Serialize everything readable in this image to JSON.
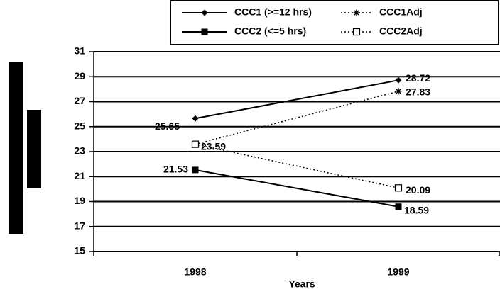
{
  "chart_data": {
    "type": "line",
    "categories": [
      "1998",
      "1999"
    ],
    "x_label": "Years",
    "ylim": [
      15,
      31
    ],
    "yticks": [
      15,
      17,
      19,
      21,
      23,
      25,
      27,
      29,
      31
    ],
    "grid": true,
    "series": [
      {
        "name": "CCC1 (>=12 hrs)",
        "color": "#000000",
        "marker": "diamond",
        "dash": false,
        "values": [
          25.65,
          28.72
        ]
      },
      {
        "name": "CCC1Adj",
        "color": "#000000",
        "marker": "asterisk",
        "dash": true,
        "values": [
          23.59,
          27.83
        ]
      },
      {
        "name": "CCC2 (<=5 hrs)",
        "color": "#000000",
        "marker": "square",
        "dash": false,
        "values": [
          21.53,
          18.59
        ]
      },
      {
        "name": "CCC2Adj",
        "color": "#000000",
        "marker": "open-square",
        "dash": true,
        "values": [
          23.59,
          20.09
        ]
      }
    ]
  }
}
